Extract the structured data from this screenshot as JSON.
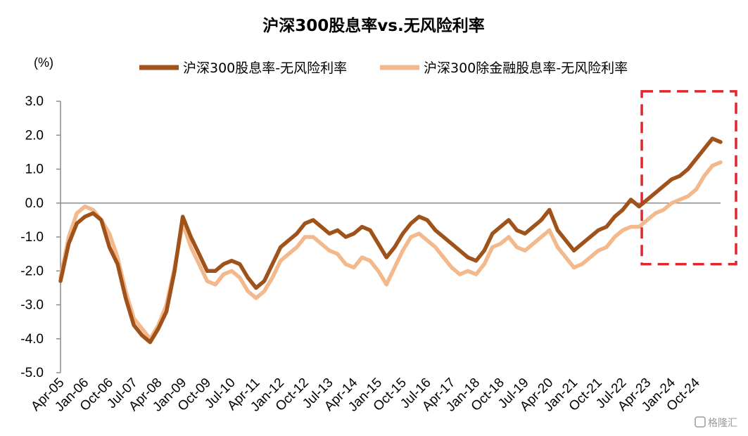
{
  "chart_data": {
    "type": "line",
    "title": "沪深300股息率vs.无风险利率",
    "unit_label": "(%)",
    "ylim": [
      -5.0,
      3.0
    ],
    "y_ticks": [
      "3.0",
      "2.0",
      "1.0",
      "0.0",
      "-1.0",
      "-2.0",
      "-3.0",
      "-4.0",
      "-5.0"
    ],
    "x_range": [
      "2005-04",
      "2025-07"
    ],
    "x_ticks": [
      "Apr-05",
      "Jan-06",
      "Oct-06",
      "Jul-07",
      "Apr-08",
      "Jan-09",
      "Oct-09",
      "Jul-10",
      "Apr-11",
      "Jan-12",
      "Oct-12",
      "Jul-13",
      "Apr-14",
      "Jan-15",
      "Oct-15",
      "Jul-16",
      "Apr-17",
      "Jan-18",
      "Oct-18",
      "Jul-19",
      "Apr-20",
      "Jan-21",
      "Oct-21",
      "Jul-22",
      "Apr-23",
      "Jan-24",
      "Oct-24"
    ],
    "legend_position": "top",
    "grid": false,
    "series": [
      {
        "name": "沪深300股息率-无风险利率",
        "color": "#a0521b",
        "points": [
          [
            "2005-04",
            -2.3
          ],
          [
            "2005-07",
            -1.2
          ],
          [
            "2005-10",
            -0.6
          ],
          [
            "2006-01",
            -0.4
          ],
          [
            "2006-04",
            -0.3
          ],
          [
            "2006-07",
            -0.5
          ],
          [
            "2006-10",
            -1.3
          ],
          [
            "2007-01",
            -1.8
          ],
          [
            "2007-04",
            -2.8
          ],
          [
            "2007-07",
            -3.6
          ],
          [
            "2007-10",
            -3.9
          ],
          [
            "2008-01",
            -4.1
          ],
          [
            "2008-04",
            -3.7
          ],
          [
            "2008-07",
            -3.2
          ],
          [
            "2008-10",
            -2.0
          ],
          [
            "2009-01",
            -0.4
          ],
          [
            "2009-04",
            -1.0
          ],
          [
            "2009-07",
            -1.5
          ],
          [
            "2009-10",
            -2.0
          ],
          [
            "2010-01",
            -2.0
          ],
          [
            "2010-04",
            -1.8
          ],
          [
            "2010-07",
            -1.7
          ],
          [
            "2010-10",
            -1.8
          ],
          [
            "2011-01",
            -2.2
          ],
          [
            "2011-04",
            -2.5
          ],
          [
            "2011-07",
            -2.3
          ],
          [
            "2011-10",
            -1.8
          ],
          [
            "2012-01",
            -1.3
          ],
          [
            "2012-04",
            -1.1
          ],
          [
            "2012-07",
            -0.9
          ],
          [
            "2012-10",
            -0.6
          ],
          [
            "2013-01",
            -0.5
          ],
          [
            "2013-04",
            -0.7
          ],
          [
            "2013-07",
            -0.9
          ],
          [
            "2013-10",
            -0.8
          ],
          [
            "2014-01",
            -1.0
          ],
          [
            "2014-04",
            -0.9
          ],
          [
            "2014-07",
            -0.7
          ],
          [
            "2014-10",
            -0.8
          ],
          [
            "2015-01",
            -1.2
          ],
          [
            "2015-04",
            -1.6
          ],
          [
            "2015-07",
            -1.3
          ],
          [
            "2015-10",
            -0.9
          ],
          [
            "2016-01",
            -0.6
          ],
          [
            "2016-04",
            -0.4
          ],
          [
            "2016-07",
            -0.5
          ],
          [
            "2016-10",
            -0.8
          ],
          [
            "2017-01",
            -1.0
          ],
          [
            "2017-04",
            -1.2
          ],
          [
            "2017-07",
            -1.4
          ],
          [
            "2017-10",
            -1.6
          ],
          [
            "2018-01",
            -1.7
          ],
          [
            "2018-04",
            -1.4
          ],
          [
            "2018-07",
            -0.9
          ],
          [
            "2018-10",
            -0.7
          ],
          [
            "2019-01",
            -0.5
          ],
          [
            "2019-04",
            -0.8
          ],
          [
            "2019-07",
            -0.9
          ],
          [
            "2019-10",
            -0.7
          ],
          [
            "2020-01",
            -0.5
          ],
          [
            "2020-04",
            -0.2
          ],
          [
            "2020-07",
            -0.8
          ],
          [
            "2020-10",
            -1.1
          ],
          [
            "2021-01",
            -1.4
          ],
          [
            "2021-04",
            -1.2
          ],
          [
            "2021-07",
            -1.0
          ],
          [
            "2021-10",
            -0.8
          ],
          [
            "2022-01",
            -0.7
          ],
          [
            "2022-04",
            -0.4
          ],
          [
            "2022-07",
            -0.2
          ],
          [
            "2022-10",
            0.1
          ],
          [
            "2023-01",
            -0.1
          ],
          [
            "2023-04",
            0.1
          ],
          [
            "2023-07",
            0.3
          ],
          [
            "2023-10",
            0.5
          ],
          [
            "2024-01",
            0.7
          ],
          [
            "2024-04",
            0.8
          ],
          [
            "2024-07",
            1.0
          ],
          [
            "2024-10",
            1.3
          ],
          [
            "2025-01",
            1.6
          ],
          [
            "2025-04",
            1.9
          ],
          [
            "2025-07",
            1.8
          ]
        ]
      },
      {
        "name": "沪深300除金融股息率-无风险利率",
        "color": "#f3b98c",
        "points": [
          [
            "2005-04",
            -2.2
          ],
          [
            "2005-07",
            -1.0
          ],
          [
            "2005-10",
            -0.3
          ],
          [
            "2006-01",
            -0.1
          ],
          [
            "2006-04",
            -0.2
          ],
          [
            "2006-07",
            -0.5
          ],
          [
            "2006-10",
            -0.9
          ],
          [
            "2007-01",
            -1.6
          ],
          [
            "2007-04",
            -2.6
          ],
          [
            "2007-07",
            -3.4
          ],
          [
            "2007-10",
            -3.7
          ],
          [
            "2008-01",
            -4.0
          ],
          [
            "2008-04",
            -3.6
          ],
          [
            "2008-07",
            -3.0
          ],
          [
            "2008-10",
            -1.9
          ],
          [
            "2009-01",
            -0.6
          ],
          [
            "2009-04",
            -1.3
          ],
          [
            "2009-07",
            -1.8
          ],
          [
            "2009-10",
            -2.3
          ],
          [
            "2010-01",
            -2.4
          ],
          [
            "2010-04",
            -2.1
          ],
          [
            "2010-07",
            -2.0
          ],
          [
            "2010-10",
            -2.2
          ],
          [
            "2011-01",
            -2.6
          ],
          [
            "2011-04",
            -2.8
          ],
          [
            "2011-07",
            -2.6
          ],
          [
            "2011-10",
            -2.2
          ],
          [
            "2012-01",
            -1.7
          ],
          [
            "2012-04",
            -1.5
          ],
          [
            "2012-07",
            -1.3
          ],
          [
            "2012-10",
            -1.0
          ],
          [
            "2013-01",
            -1.0
          ],
          [
            "2013-04",
            -1.2
          ],
          [
            "2013-07",
            -1.4
          ],
          [
            "2013-10",
            -1.5
          ],
          [
            "2014-01",
            -1.8
          ],
          [
            "2014-04",
            -1.9
          ],
          [
            "2014-07",
            -1.6
          ],
          [
            "2014-10",
            -1.7
          ],
          [
            "2015-01",
            -2.0
          ],
          [
            "2015-04",
            -2.4
          ],
          [
            "2015-07",
            -1.9
          ],
          [
            "2015-10",
            -1.4
          ],
          [
            "2016-01",
            -1.0
          ],
          [
            "2016-04",
            -0.9
          ],
          [
            "2016-07",
            -1.1
          ],
          [
            "2016-10",
            -1.3
          ],
          [
            "2017-01",
            -1.6
          ],
          [
            "2017-04",
            -1.9
          ],
          [
            "2017-07",
            -2.1
          ],
          [
            "2017-10",
            -2.0
          ],
          [
            "2018-01",
            -2.1
          ],
          [
            "2018-04",
            -1.8
          ],
          [
            "2018-07",
            -1.3
          ],
          [
            "2018-10",
            -1.2
          ],
          [
            "2019-01",
            -1.0
          ],
          [
            "2019-04",
            -1.3
          ],
          [
            "2019-07",
            -1.4
          ],
          [
            "2019-10",
            -1.2
          ],
          [
            "2020-01",
            -1.0
          ],
          [
            "2020-04",
            -0.8
          ],
          [
            "2020-07",
            -1.3
          ],
          [
            "2020-10",
            -1.6
          ],
          [
            "2021-01",
            -1.9
          ],
          [
            "2021-04",
            -1.8
          ],
          [
            "2021-07",
            -1.6
          ],
          [
            "2021-10",
            -1.4
          ],
          [
            "2022-01",
            -1.3
          ],
          [
            "2022-04",
            -1.0
          ],
          [
            "2022-07",
            -0.8
          ],
          [
            "2022-10",
            -0.7
          ],
          [
            "2023-01",
            -0.7
          ],
          [
            "2023-04",
            -0.5
          ],
          [
            "2023-07",
            -0.3
          ],
          [
            "2023-10",
            -0.2
          ],
          [
            "2024-01",
            0.0
          ],
          [
            "2024-04",
            0.1
          ],
          [
            "2024-07",
            0.2
          ],
          [
            "2024-10",
            0.4
          ],
          [
            "2025-01",
            0.8
          ],
          [
            "2025-04",
            1.1
          ],
          [
            "2025-07",
            1.2
          ]
        ]
      }
    ],
    "highlight": {
      "from": "2023-02",
      "to": "2025-07",
      "ymin": -1.8,
      "ymax": 3.5,
      "color": "#e1262d",
      "style": "dashed"
    }
  },
  "watermark": {
    "text": "格隆汇"
  }
}
